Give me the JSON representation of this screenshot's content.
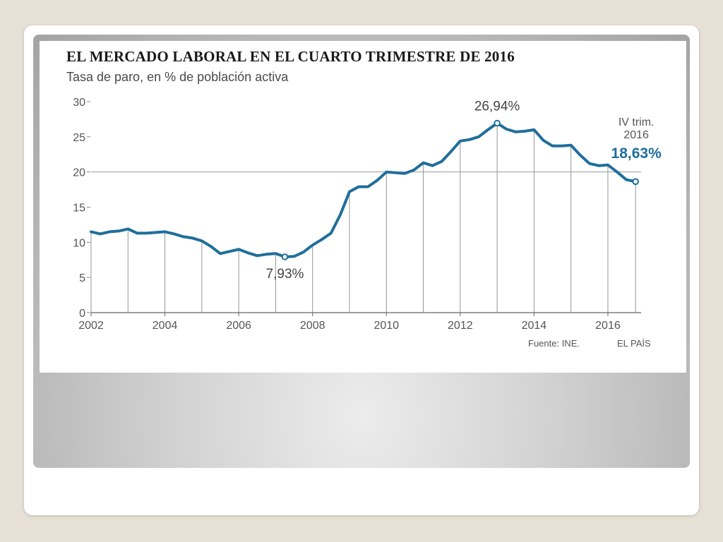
{
  "chart_data": {
    "type": "line",
    "title": "EL MERCADO LABORAL EN EL CUARTO TRIMESTRE DE 2016",
    "subtitle": "Tasa de paro, en % de población activa",
    "source": "Fuente: INE.",
    "brand": "EL PAÍS",
    "xlim": [
      2002,
      2016.9
    ],
    "ylim": [
      0,
      30
    ],
    "y_ticks": [
      0,
      5,
      10,
      15,
      20,
      25,
      30
    ],
    "y_tick_labels": [
      "0",
      "5",
      "10",
      "15",
      "20",
      "25",
      "30"
    ],
    "x_ticks": [
      2002,
      2004,
      2006,
      2008,
      2010,
      2012,
      2014,
      2016
    ],
    "x_tick_labels": [
      "2002",
      "2004",
      "2006",
      "2008",
      "2010",
      "2012",
      "2014",
      "2016"
    ],
    "gridline_y": 20,
    "line_color": "#1f6e9c",
    "series": [
      {
        "x": [
          2002.0,
          2002.25,
          2002.5,
          2002.75,
          2003.0,
          2003.25,
          2003.5,
          2003.75,
          2004.0,
          2004.25,
          2004.5,
          2004.75,
          2005.0,
          2005.25,
          2005.5,
          2005.75,
          2006.0,
          2006.25,
          2006.5,
          2006.75,
          2007.0,
          2007.25,
          2007.5,
          2007.75,
          2008.0,
          2008.25,
          2008.5,
          2008.75,
          2009.0,
          2009.25,
          2009.5,
          2009.75,
          2010.0,
          2010.25,
          2010.5,
          2010.75,
          2011.0,
          2011.25,
          2011.5,
          2011.75,
          2012.0,
          2012.25,
          2012.5,
          2012.75,
          2013.0,
          2013.25,
          2013.5,
          2013.75,
          2014.0,
          2014.25,
          2014.5,
          2014.75,
          2015.0,
          2015.25,
          2015.5,
          2015.75,
          2016.0,
          2016.25,
          2016.5,
          2016.75
        ],
        "values": [
          11.5,
          11.2,
          11.5,
          11.6,
          11.9,
          11.3,
          11.3,
          11.4,
          11.5,
          11.2,
          10.8,
          10.6,
          10.2,
          9.4,
          8.4,
          8.7,
          9.0,
          8.5,
          8.1,
          8.3,
          8.4,
          7.93,
          8.0,
          8.6,
          9.6,
          10.4,
          11.3,
          13.9,
          17.2,
          17.9,
          17.9,
          18.8,
          20.0,
          19.9,
          19.8,
          20.3,
          21.3,
          20.9,
          21.5,
          22.9,
          24.4,
          24.6,
          25.0,
          26.0,
          26.94,
          26.1,
          25.7,
          25.8,
          26.0,
          24.5,
          23.7,
          23.7,
          23.8,
          22.4,
          21.2,
          20.9,
          21.0,
          20.0,
          18.9,
          18.63
        ]
      }
    ],
    "annotations": [
      {
        "text": "26,94%",
        "x": 2013.0,
        "y": 26.94
      },
      {
        "text": "7,93%",
        "x": 2007.25,
        "y": 7.93
      },
      {
        "text": "IV trim.",
        "x": 2016.75,
        "y": 18.63
      },
      {
        "text": "2016",
        "x": 2016.75,
        "y": 18.63
      },
      {
        "text": "18,63%",
        "x": 2016.75,
        "y": 18.63
      }
    ]
  }
}
